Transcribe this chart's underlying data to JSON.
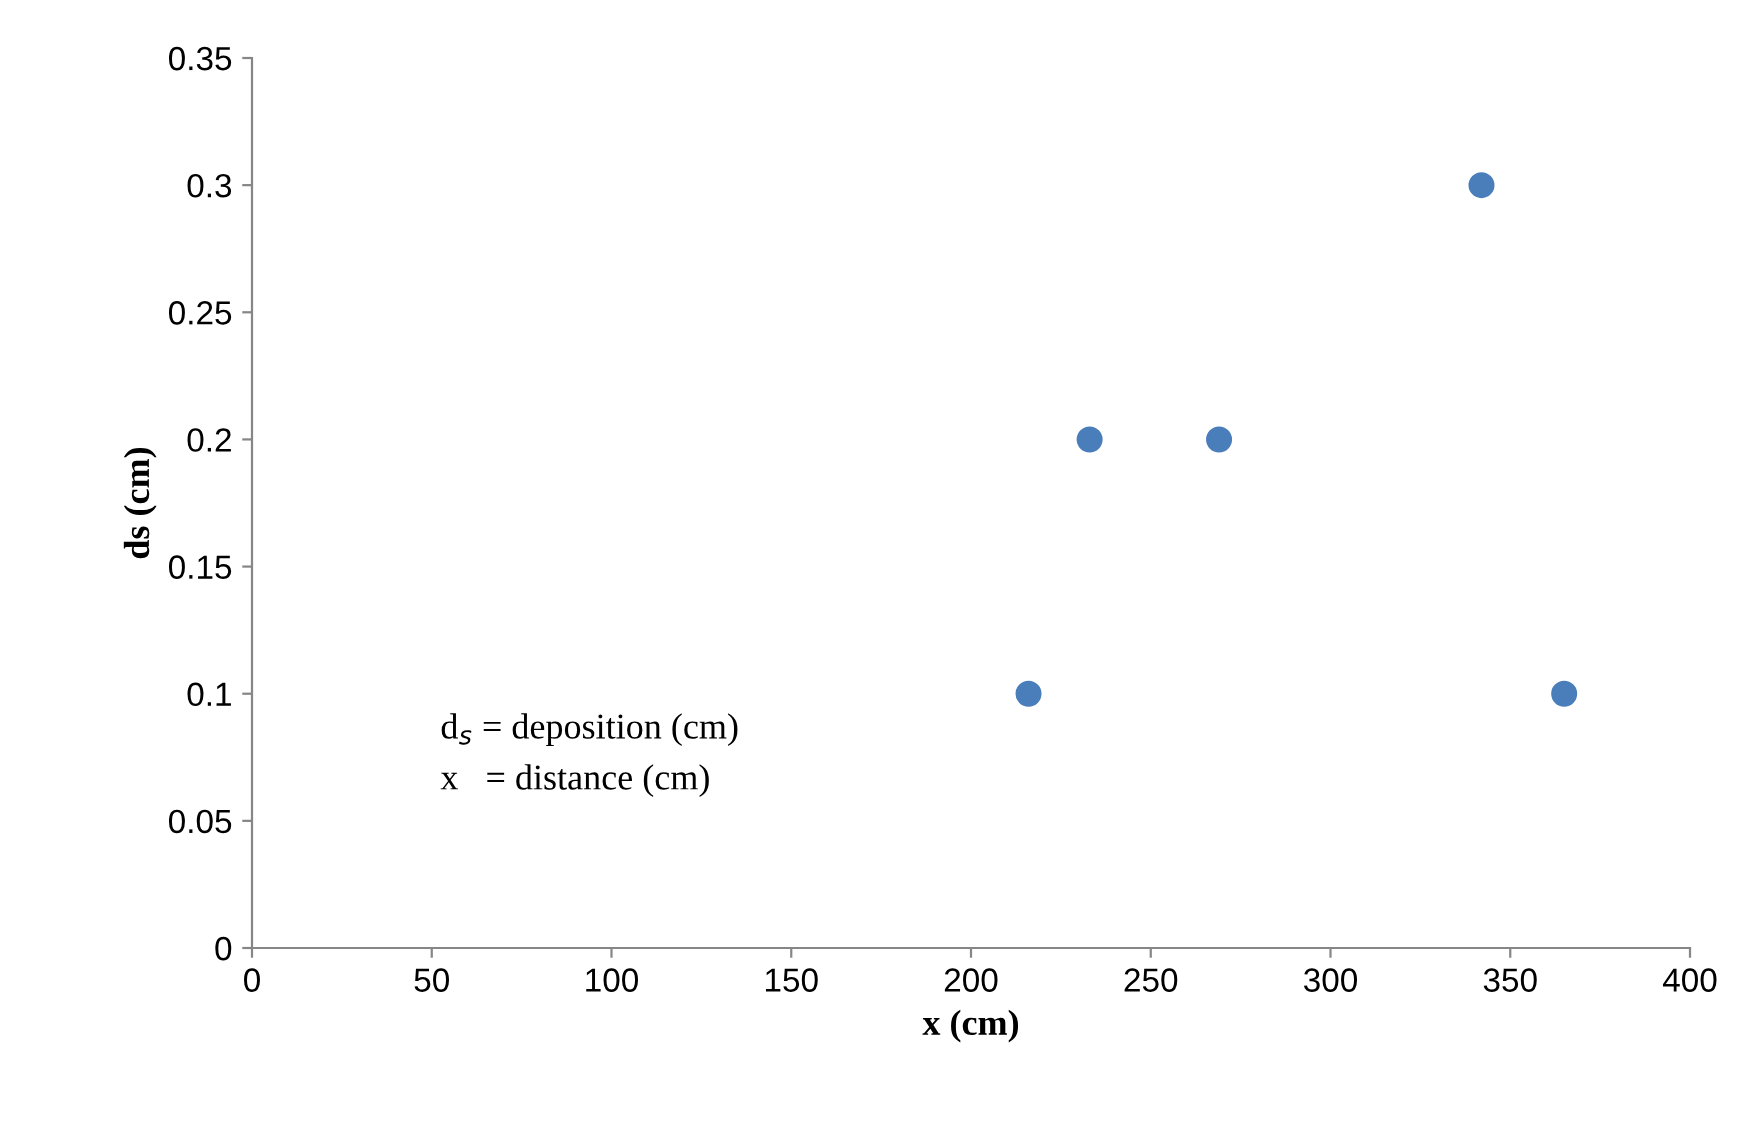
{
  "chart_data": {
    "type": "scatter",
    "xlabel": "x (cm)",
    "ylabel": "ds (cm)",
    "x": [
      216,
      233,
      269,
      342,
      365
    ],
    "values": [
      0.1,
      0.2,
      0.2,
      0.3,
      0.1
    ],
    "color": "#4a7ebb",
    "marker": "circle",
    "grid": false,
    "legend": false,
    "xlim": [
      0,
      400
    ],
    "xticks": [
      0,
      50,
      100,
      150,
      200,
      250,
      300,
      350,
      400
    ],
    "ylim": [
      0,
      0.35
    ],
    "yticks": [
      0,
      0.05,
      0.1,
      0.15,
      0.2,
      0.25,
      0.3,
      0.35
    ],
    "annotations": [
      "d$_{s}$ = deposition (cm)",
      "x   = distance (cm)"
    ]
  }
}
